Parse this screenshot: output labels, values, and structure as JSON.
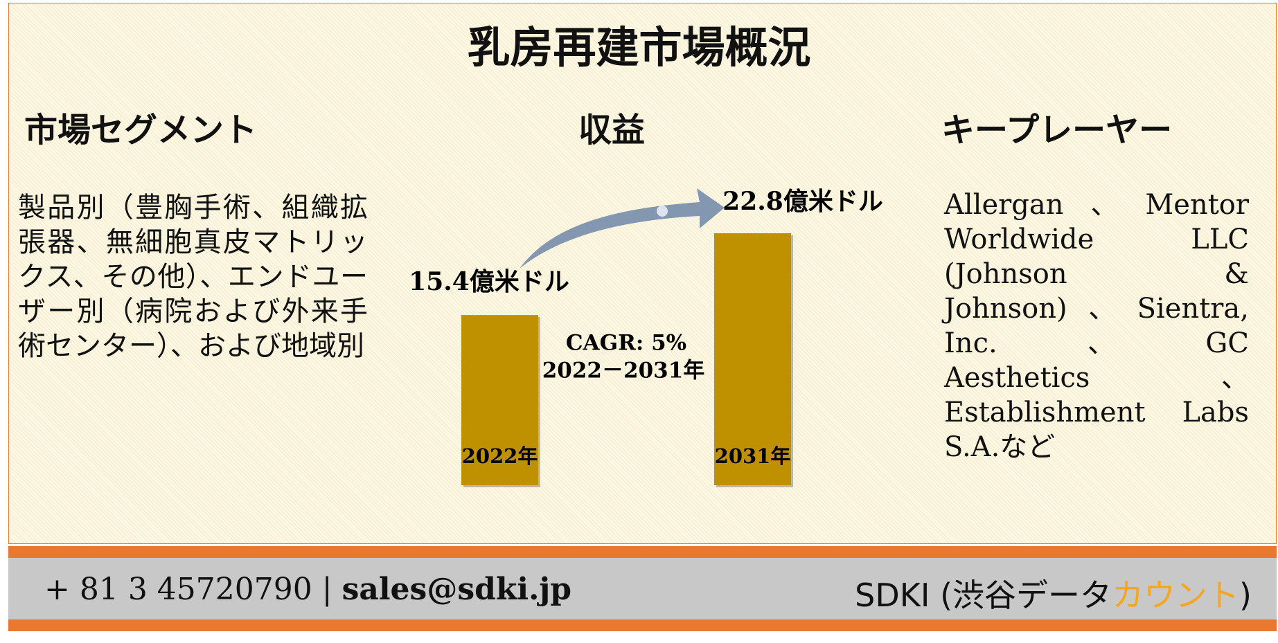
{
  "title": "乳房再建市場概況",
  "segments": {
    "heading": "市場セグメント",
    "text": "製品別（豊胸手術、組織拡張器、無細胞真皮マトリックス、その他）、エンドユーザー別（病院および外来手術センター）、および地域別"
  },
  "revenue": {
    "heading": "収益",
    "categories": [
      "2022年",
      "2031年"
    ],
    "values": [
      15.4,
      22.8
    ],
    "value_labels": [
      "15.4億米ドル",
      "22.8億米ドル"
    ],
    "color": "#bf9000",
    "cagr": "CAGR: 5%",
    "period": "2022－2031年"
  },
  "players": {
    "heading": "キープレーヤー",
    "text": "Allergan、Mentor Worldwide LLC (Johnson & Johnson)、Sientra, Inc.、GC Aesthetics、Establishment Labs S.A.など"
  },
  "footer": {
    "phone": "+ 81 3 45720790 | ",
    "email": "sales@sdki.jp",
    "brand": "SDKI (渋谷データ",
    "brand_accent": "カウント",
    "brand_close": ")"
  }
}
